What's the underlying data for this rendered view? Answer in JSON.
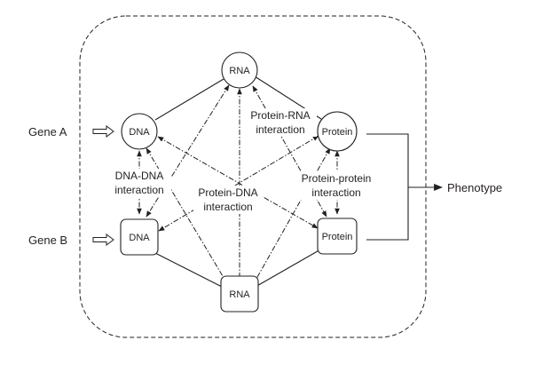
{
  "nodes": {
    "rna_a": "RNA",
    "dna_a": "DNA",
    "protein_a": "Protein",
    "dna_b": "DNA",
    "protein_b": "Protein",
    "rna_b": "RNA"
  },
  "genes": {
    "gene_a": "Gene A",
    "gene_b": "Gene B"
  },
  "interactions": {
    "dna_dna_1": "DNA-DNA",
    "dna_dna_2": "interaction",
    "protein_rna_1": "Protein-RNA",
    "protein_rna_2": "interaction",
    "protein_dna_1": "Protein-DNA",
    "protein_dna_2": "interaction",
    "protein_protein_1": "Protein-protein",
    "protein_protein_2": "interaction"
  },
  "output": {
    "phenotype": "Phenotype"
  }
}
